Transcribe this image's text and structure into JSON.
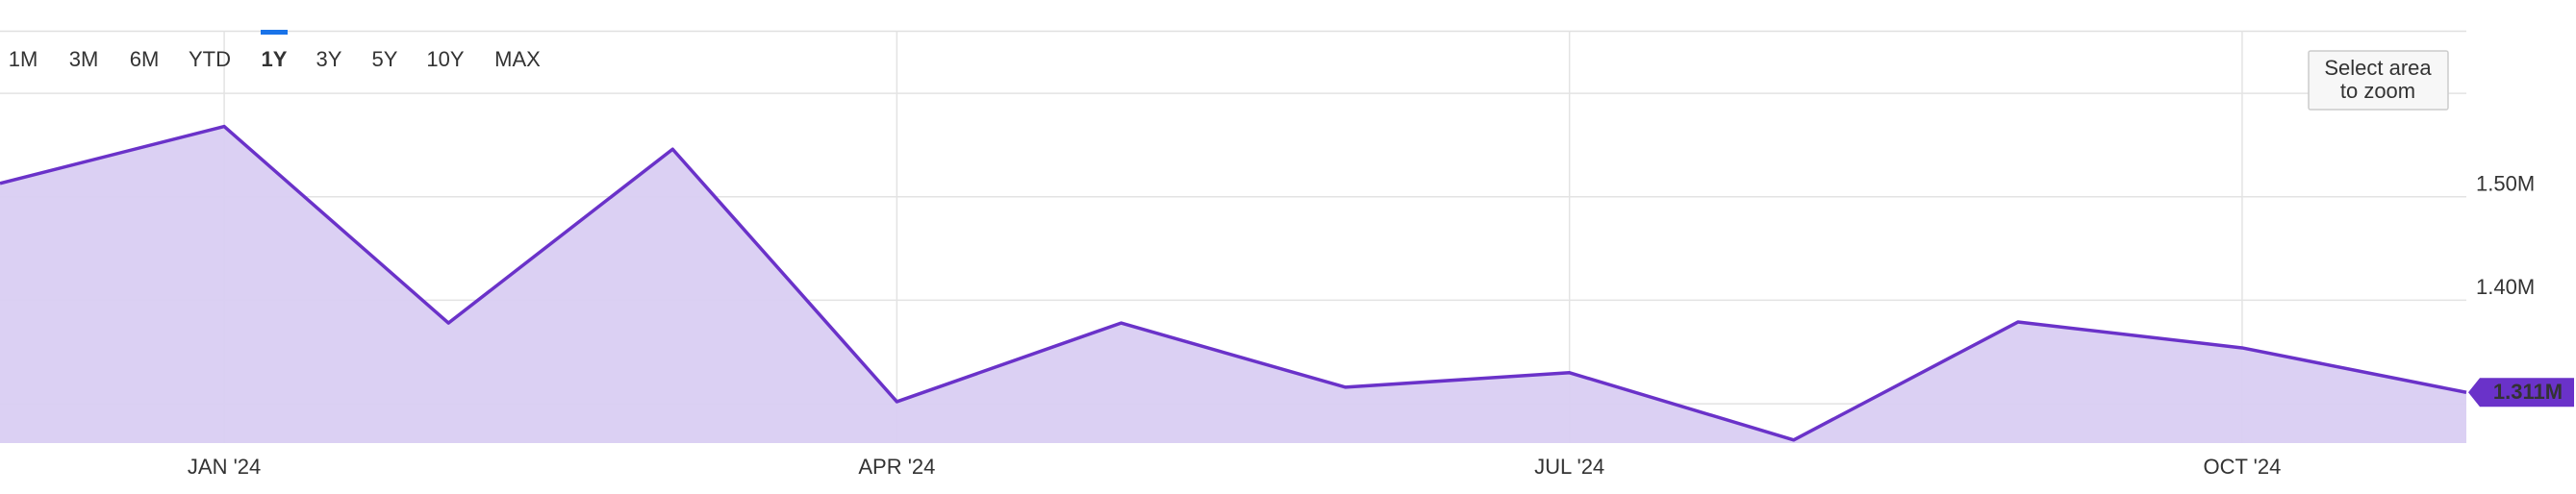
{
  "range_selector": {
    "buttons": [
      "1M",
      "3M",
      "6M",
      "YTD",
      "1Y",
      "3Y",
      "5Y",
      "10Y",
      "MAX"
    ],
    "active_index": 4,
    "disabled_indices": [
      7,
      8
    ]
  },
  "zoom_button": {
    "lines": [
      "Select area",
      "to zoom"
    ]
  },
  "chart_data": {
    "type": "area",
    "x": [
      "2023-12",
      "2024-01",
      "2024-02",
      "2024-03",
      "2024-04",
      "2024-05",
      "2024-06",
      "2024-07",
      "2024-08",
      "2024-09",
      "2024-10",
      "2024-11"
    ],
    "values": [
      1513000,
      1568000,
      1378000,
      1546000,
      1302000,
      1378000,
      1316000,
      1330000,
      1265000,
      1379000,
      1354000,
      1311000
    ],
    "color": "#6a32c9",
    "fill": "#d9cdf2",
    "current_value": {
      "value": 1311000,
      "label": "1.311M"
    },
    "xlim": [
      "2023-12",
      "2024-11"
    ],
    "xticks": [
      {
        "value": "2024-01",
        "label": "JAN '24"
      },
      {
        "value": "2024-04",
        "label": "APR '24"
      },
      {
        "value": "2024-07",
        "label": "JUL '24"
      },
      {
        "value": "2024-10",
        "label": "OCT '24"
      }
    ],
    "ylim": [
      1262000,
      1660000
    ],
    "yticks": [
      {
        "value": 1500000,
        "label": "1.50M"
      },
      {
        "value": 1400000,
        "label": "1.40M"
      }
    ],
    "grid_lines": [
      1300000,
      1400000,
      1500000,
      1600000
    ]
  }
}
